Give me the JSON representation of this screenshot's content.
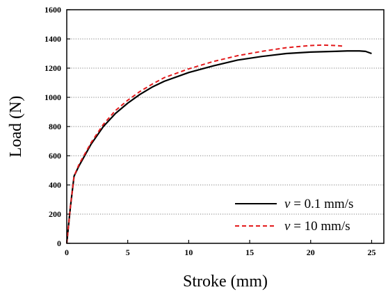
{
  "chart_data": {
    "type": "line",
    "title": "",
    "xlabel": "Stroke (mm)",
    "ylabel": "Load (N)",
    "xlim": [
      0,
      26
    ],
    "ylim": [
      0,
      1600
    ],
    "xticks": [
      0,
      5,
      10,
      15,
      20,
      25
    ],
    "yticks": [
      0,
      200,
      400,
      600,
      800,
      1000,
      1200,
      1400,
      1600
    ],
    "grid": "horizontal dotted",
    "legend_position": "bottom-right",
    "series": [
      {
        "name_var": "v",
        "name_rest": " = 0.1 mm/s",
        "color": "#000000",
        "dash": "solid",
        "points": [
          [
            0,
            0
          ],
          [
            0.3,
            250
          ],
          [
            0.6,
            460
          ],
          [
            1,
            530
          ],
          [
            2,
            680
          ],
          [
            3,
            800
          ],
          [
            4,
            890
          ],
          [
            5,
            960
          ],
          [
            6,
            1020
          ],
          [
            7,
            1070
          ],
          [
            8,
            1110
          ],
          [
            10,
            1170
          ],
          [
            12,
            1215
          ],
          [
            14,
            1255
          ],
          [
            16,
            1280
          ],
          [
            18,
            1300
          ],
          [
            20,
            1310
          ],
          [
            22,
            1315
          ],
          [
            23,
            1318
          ],
          [
            24,
            1318
          ],
          [
            24.5,
            1315
          ],
          [
            25,
            1300
          ]
        ]
      },
      {
        "name_var": "v",
        "name_rest": " = 10 mm/s",
        "color": "#e31a1c",
        "dash": "dashed",
        "points": [
          [
            0,
            0
          ],
          [
            0.3,
            250
          ],
          [
            0.6,
            460
          ],
          [
            1,
            540
          ],
          [
            2,
            690
          ],
          [
            3,
            815
          ],
          [
            4,
            910
          ],
          [
            5,
            980
          ],
          [
            6,
            1040
          ],
          [
            7,
            1090
          ],
          [
            8,
            1135
          ],
          [
            10,
            1195
          ],
          [
            12,
            1245
          ],
          [
            14,
            1285
          ],
          [
            16,
            1315
          ],
          [
            18,
            1340
          ],
          [
            20,
            1355
          ],
          [
            21,
            1358
          ],
          [
            22,
            1355
          ],
          [
            22.8,
            1350
          ]
        ]
      }
    ]
  }
}
